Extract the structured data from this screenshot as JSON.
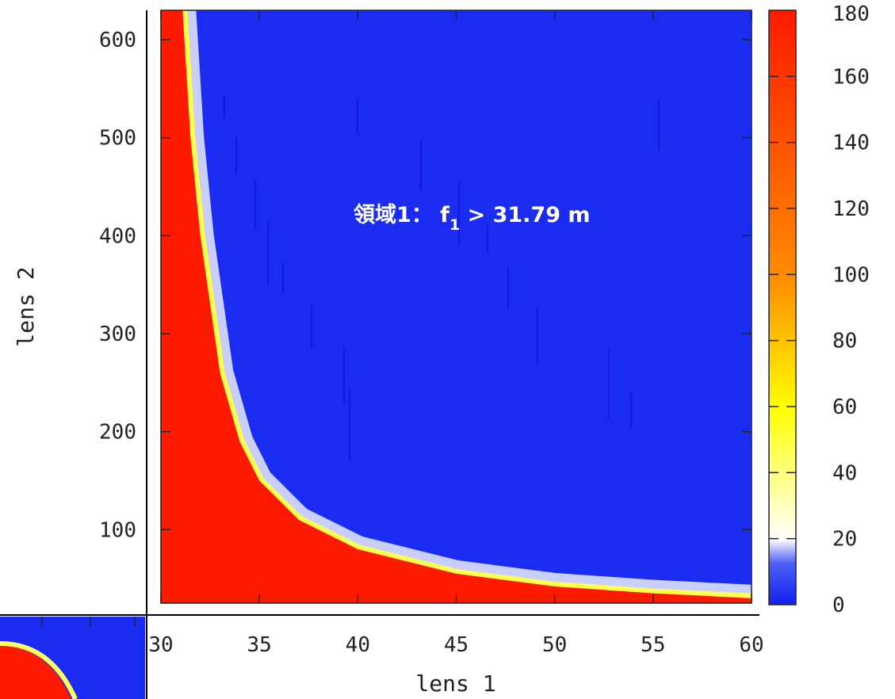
{
  "chart_data": {
    "type": "heatmap",
    "xlabel": "lens 1",
    "ylabel": "lens 2",
    "xlim": [
      30,
      60
    ],
    "ylim": [
      25,
      630
    ],
    "x_ticks": [
      "30",
      "35",
      "40",
      "45",
      "50",
      "55",
      "60"
    ],
    "y_ticks": [
      "100",
      "200",
      "300",
      "400",
      "500",
      "600"
    ],
    "colorbar": {
      "range": [
        0,
        180
      ],
      "ticks": [
        "0",
        "20",
        "40",
        "60",
        "80",
        "100",
        "120",
        "140",
        "160",
        "180"
      ],
      "colors": [
        "#1020f0",
        "#ffffff",
        "#ffff00",
        "#ff8c00",
        "#ff1a00"
      ]
    },
    "annotation": {
      "text": "領域1： f",
      "subscript": "1",
      "suffix": " > 31.79 m"
    },
    "background_color": "#1a2cf2",
    "boundary": {
      "description": "red region in lower-left bounded by curve",
      "x": [
        31.1,
        31.5,
        32,
        32.5,
        33,
        34,
        35,
        37,
        40,
        45,
        50,
        55
      ],
      "y": [
        630,
        500,
        400,
        330,
        260,
        190,
        150,
        110,
        80,
        55,
        42,
        35
      ]
    }
  }
}
